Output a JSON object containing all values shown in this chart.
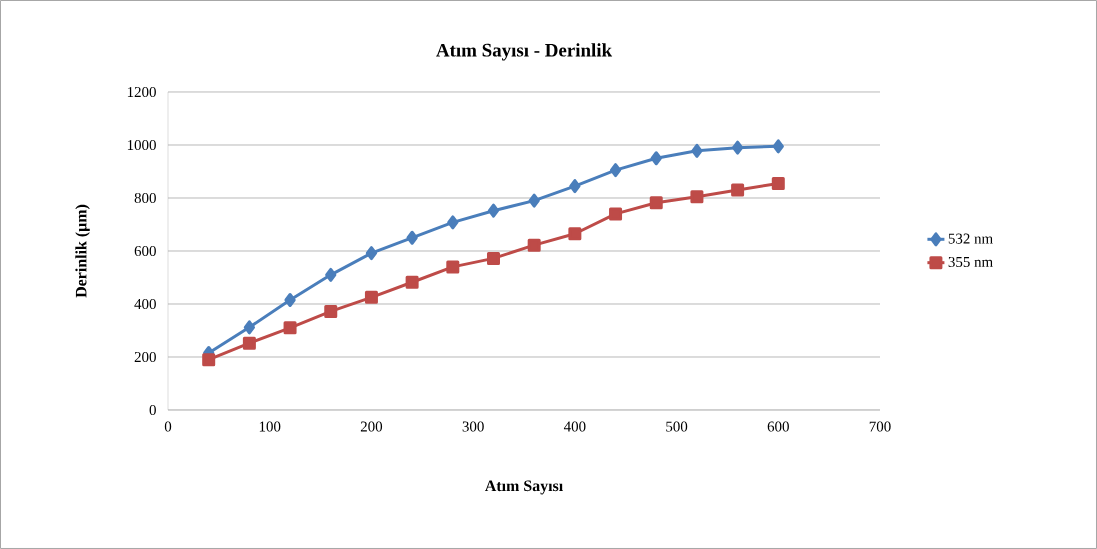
{
  "chart_data": {
    "type": "line",
    "title": "Atım Sayısı - Derinlik",
    "xlabel": "Atım Sayısı",
    "ylabel": "Derinlik (µm)",
    "x": [
      40,
      80,
      120,
      160,
      200,
      240,
      280,
      320,
      360,
      400,
      440,
      480,
      520,
      560,
      600
    ],
    "series": [
      {
        "name": "532 nm",
        "color": "#4a7ebb",
        "marker": "diamond",
        "values": [
          215,
          312,
          415,
          510,
          592,
          650,
          708,
          752,
          790,
          845,
          905,
          950,
          978,
          990,
          995
        ]
      },
      {
        "name": "355 nm",
        "color": "#be4b48",
        "marker": "square",
        "values": [
          190,
          252,
          310,
          372,
          425,
          482,
          540,
          572,
          622,
          665,
          740,
          782,
          805,
          830,
          855
        ]
      }
    ],
    "xlim": [
      0,
      700
    ],
    "xticks": [
      0,
      100,
      200,
      300,
      400,
      500,
      600,
      700
    ],
    "ylim": [
      0,
      1200
    ],
    "yticks": [
      0,
      200,
      400,
      600,
      800,
      1000,
      1200
    ],
    "grid": "y",
    "legend": "right",
    "line_style": "solid"
  }
}
